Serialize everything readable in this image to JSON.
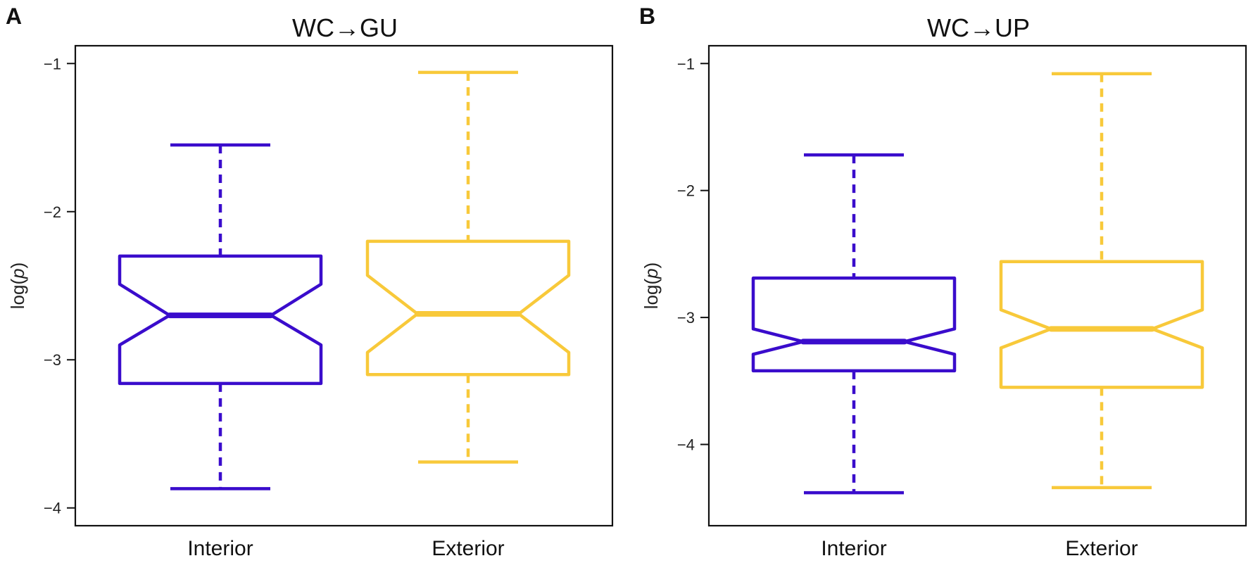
{
  "chart_data": [
    {
      "type": "box",
      "panel": "A",
      "title": "WC→GU",
      "ylabel_prefix": "log(",
      "ylabel_var": "p",
      "ylabel_suffix": ")",
      "ylim": [
        -4.12,
        -0.88
      ],
      "yticks": [
        -1,
        -2,
        -3,
        -4
      ],
      "ytick_labels": [
        "−1",
        "−2",
        "−3",
        "−4"
      ],
      "categories": [
        "Interior",
        "Exterior"
      ],
      "notched": true,
      "series": [
        {
          "category": "Interior",
          "color": "#3a0ccc",
          "whisker_low": -3.87,
          "q1": -3.16,
          "notch_low": -2.9,
          "median": -2.7,
          "notch_high": -2.49,
          "q3": -2.3,
          "whisker_high": -1.55
        },
        {
          "category": "Exterior",
          "color": "#f8c93a",
          "whisker_low": -3.69,
          "q1": -3.1,
          "notch_low": -2.95,
          "median": -2.69,
          "notch_high": -2.43,
          "q3": -2.2,
          "whisker_high": -1.06
        }
      ]
    },
    {
      "type": "box",
      "panel": "B",
      "title": "WC→UP",
      "ylabel_prefix": "log(",
      "ylabel_var": "p",
      "ylabel_suffix": ")",
      "ylim": [
        -4.64,
        -0.86
      ],
      "yticks": [
        -1,
        -2,
        -3,
        -4
      ],
      "ytick_labels": [
        "−1",
        "−2",
        "−3",
        "−4"
      ],
      "categories": [
        "Interior",
        "Exterior"
      ],
      "notched": true,
      "series": [
        {
          "category": "Interior",
          "color": "#3a0ccc",
          "whisker_low": -4.38,
          "q1": -3.42,
          "notch_low": -3.29,
          "median": -3.19,
          "notch_high": -3.09,
          "q3": -2.69,
          "whisker_high": -1.72
        },
        {
          "category": "Exterior",
          "color": "#f8c93a",
          "whisker_low": -4.34,
          "q1": -3.55,
          "notch_low": -3.24,
          "median": -3.09,
          "notch_high": -2.94,
          "q3": -2.56,
          "whisker_high": -1.08
        }
      ]
    }
  ]
}
